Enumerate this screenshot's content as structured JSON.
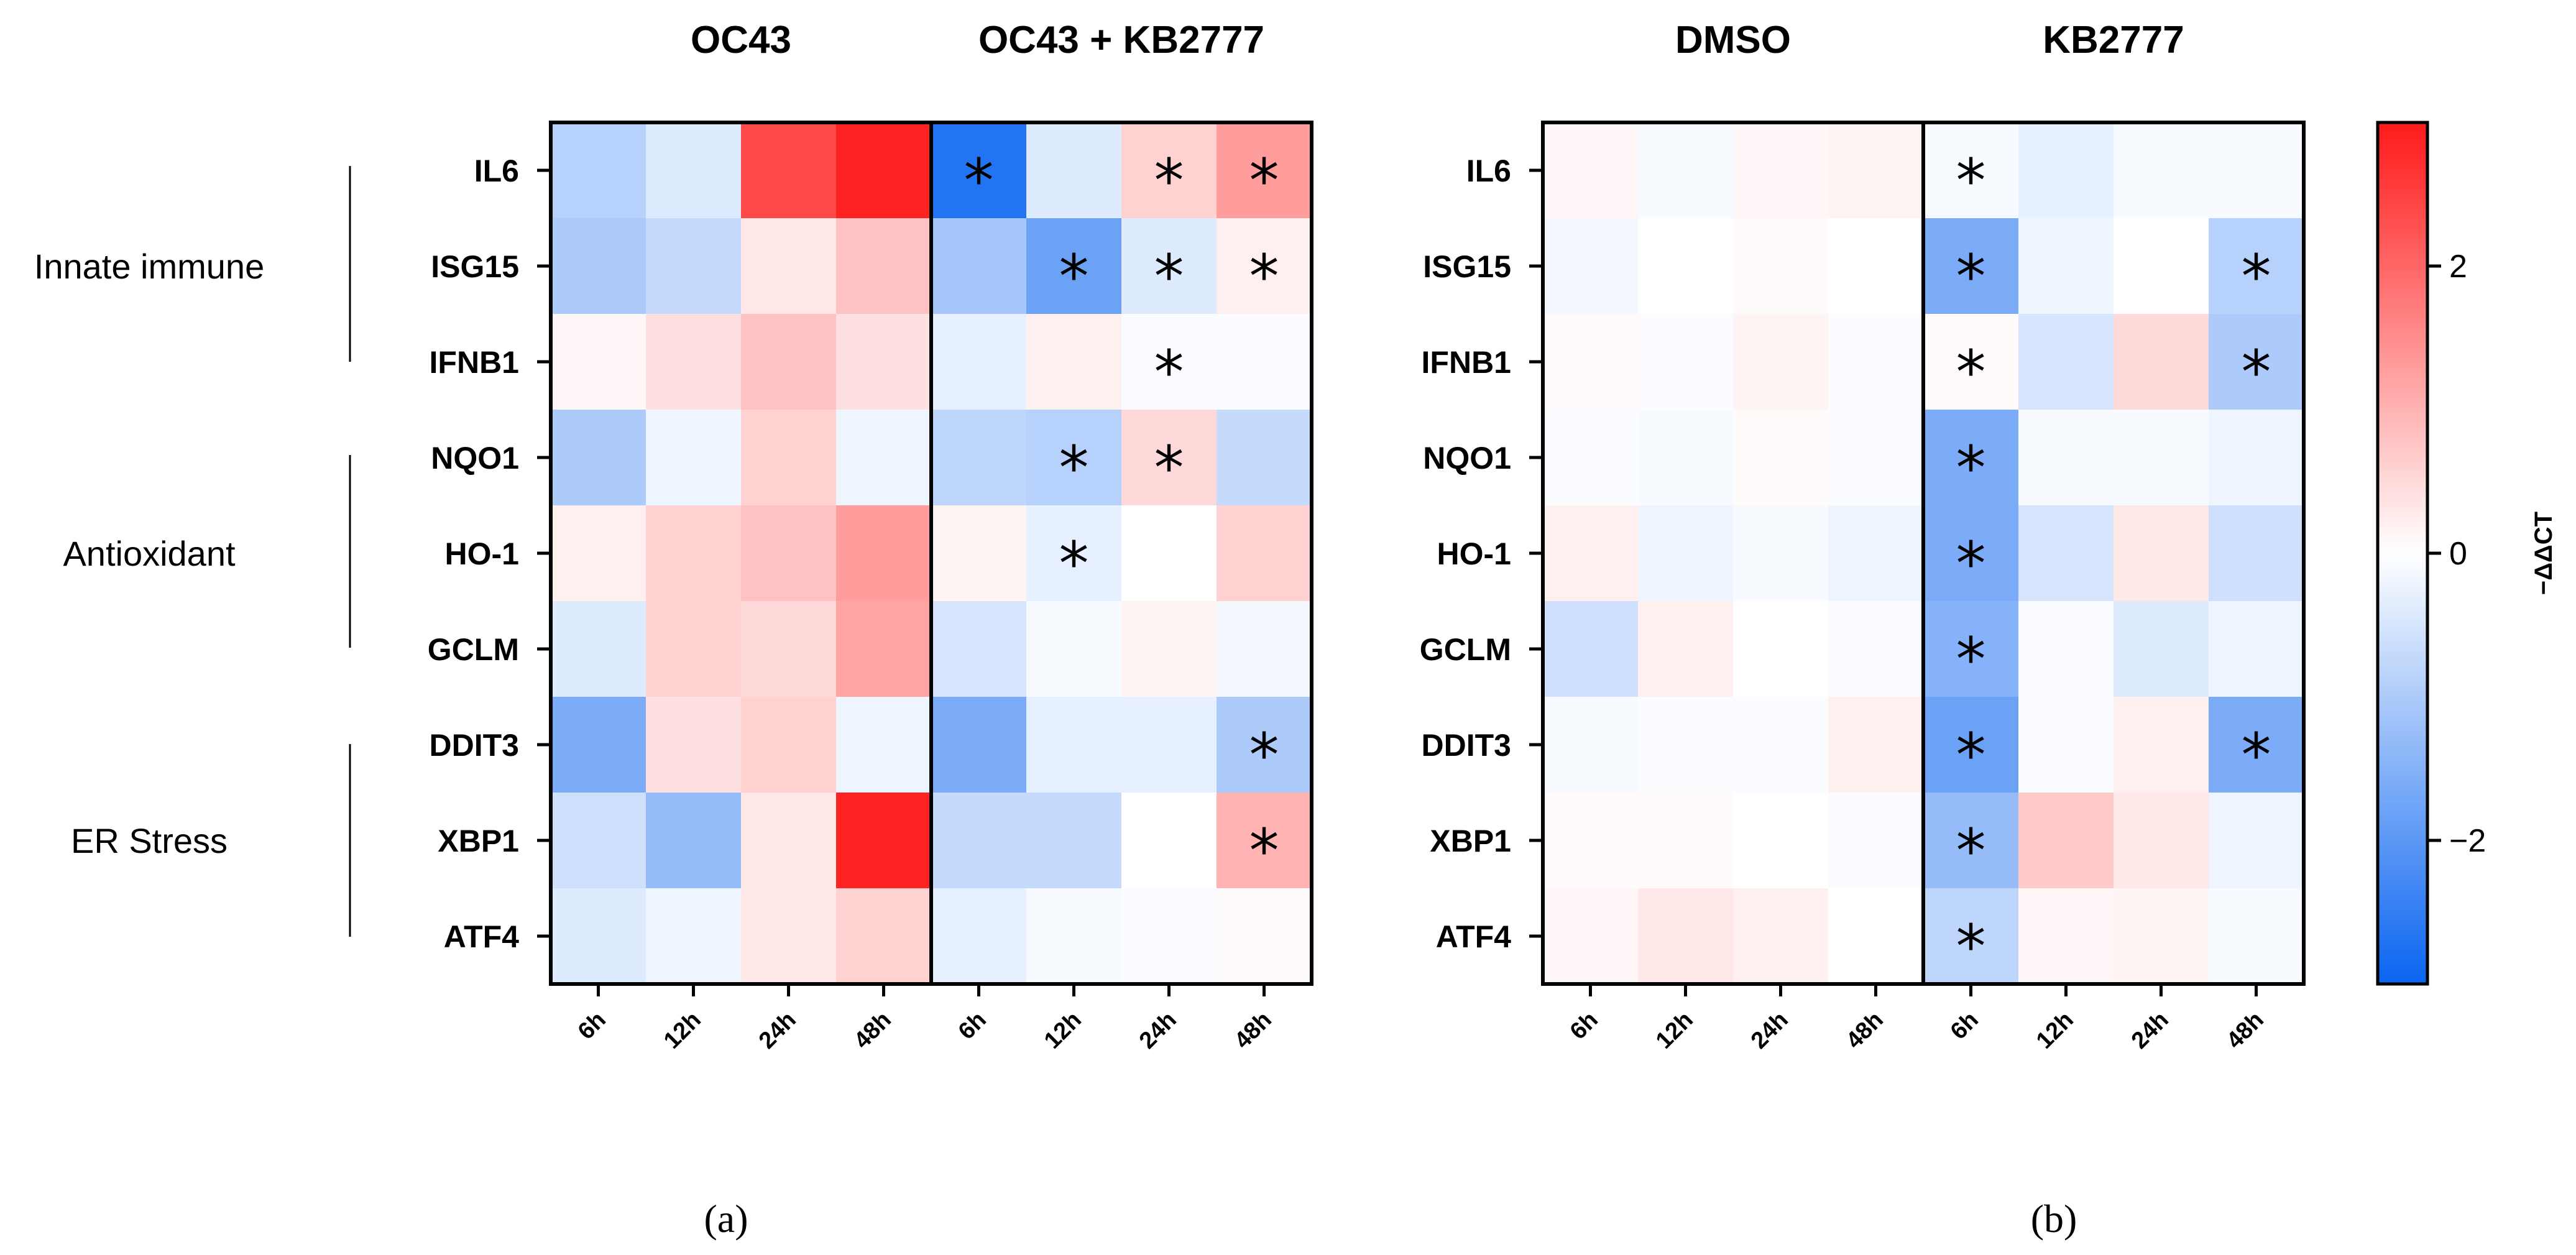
{
  "chart_data": [
    {
      "type": "heatmap",
      "panel": "(a)",
      "groups": [
        "OC43",
        "OC43 + KB2777"
      ],
      "columns": [
        "6h",
        "12h",
        "24h",
        "48h",
        "6h",
        "12h",
        "24h",
        "48h"
      ],
      "rows": [
        "IL6",
        "ISG15",
        "IFNB1",
        "NQO1",
        "HO-1",
        "GCLM",
        "DDIT3",
        "XBP1",
        "ATF4"
      ],
      "values": [
        [
          -0.9,
          -0.4,
          2.4,
          2.9,
          -2.7,
          -0.4,
          0.6,
          1.3
        ],
        [
          -1.0,
          -0.7,
          0.3,
          0.8,
          -1.1,
          -1.8,
          -0.4,
          0.2
        ],
        [
          0.1,
          0.4,
          0.8,
          0.4,
          -0.3,
          0.2,
          -0.05,
          -0.05
        ],
        [
          -1.0,
          -0.2,
          0.6,
          -0.2,
          -0.8,
          -0.9,
          0.5,
          -0.7
        ],
        [
          0.2,
          0.6,
          0.8,
          1.3,
          0.15,
          -0.3,
          0.0,
          0.6
        ],
        [
          -0.4,
          0.6,
          0.5,
          1.2,
          -0.5,
          -0.1,
          0.15,
          -0.15
        ],
        [
          -1.6,
          0.4,
          0.6,
          -0.2,
          -1.6,
          -0.3,
          -0.3,
          -1.0
        ],
        [
          -0.6,
          -1.3,
          0.3,
          2.9,
          -0.7,
          -0.7,
          0.0,
          1.0
        ],
        [
          -0.4,
          -0.2,
          0.3,
          0.6,
          -0.3,
          -0.1,
          -0.05,
          0.05
        ]
      ],
      "significance": [
        [
          false,
          false,
          false,
          false,
          true,
          false,
          true,
          true
        ],
        [
          false,
          false,
          false,
          false,
          false,
          true,
          true,
          true
        ],
        [
          false,
          false,
          false,
          false,
          false,
          false,
          true,
          false
        ],
        [
          false,
          false,
          false,
          false,
          false,
          true,
          true,
          false
        ],
        [
          false,
          false,
          false,
          false,
          false,
          true,
          false,
          false
        ],
        [
          false,
          false,
          false,
          false,
          false,
          false,
          false,
          false
        ],
        [
          false,
          false,
          false,
          false,
          false,
          false,
          false,
          true
        ],
        [
          false,
          false,
          false,
          false,
          false,
          false,
          false,
          true
        ],
        [
          false,
          false,
          false,
          false,
          false,
          false,
          false,
          false
        ]
      ],
      "categories": [
        {
          "label": "Innate immune",
          "rows": [
            "IL6",
            "ISG15",
            "IFNB1"
          ]
        },
        {
          "label": "Antioxidant",
          "rows": [
            "NQO1",
            "HO-1",
            "GCLM"
          ]
        },
        {
          "label": "ER Stress",
          "rows": [
            "DDIT3",
            "XBP1",
            "ATF4"
          ]
        }
      ]
    },
    {
      "type": "heatmap",
      "panel": "(b)",
      "groups": [
        "DMSO",
        "KB2777"
      ],
      "columns": [
        "6h",
        "12h",
        "24h",
        "48h",
        "6h",
        "12h",
        "24h",
        "48h"
      ],
      "rows": [
        "IL6",
        "ISG15",
        "IFNB1",
        "NQO1",
        "HO-1",
        "GCLM",
        "DDIT3",
        "XBP1",
        "ATF4"
      ],
      "values": [
        [
          0.1,
          -0.1,
          0.1,
          0.15,
          -0.1,
          -0.3,
          -0.1,
          -0.1
        ],
        [
          -0.15,
          0.0,
          0.05,
          0.0,
          -1.6,
          -0.2,
          0.0,
          -0.9
        ],
        [
          0.05,
          -0.05,
          0.15,
          -0.05,
          0.05,
          -0.5,
          0.5,
          -1.0
        ],
        [
          -0.05,
          -0.1,
          0.05,
          -0.05,
          -1.6,
          -0.1,
          -0.1,
          -0.2
        ],
        [
          0.2,
          -0.2,
          -0.1,
          -0.2,
          -1.6,
          -0.5,
          0.3,
          -0.6
        ],
        [
          -0.6,
          0.2,
          0.0,
          -0.05,
          -1.5,
          -0.05,
          -0.4,
          -0.2
        ],
        [
          -0.1,
          -0.05,
          -0.05,
          0.2,
          -1.8,
          -0.05,
          0.2,
          -1.6
        ],
        [
          0.05,
          0.05,
          0.0,
          -0.05,
          -1.3,
          0.7,
          0.3,
          -0.2
        ],
        [
          0.1,
          0.3,
          0.2,
          0.0,
          -0.8,
          0.1,
          0.15,
          -0.1
        ]
      ],
      "significance": [
        [
          false,
          false,
          false,
          false,
          true,
          false,
          false,
          false
        ],
        [
          false,
          false,
          false,
          false,
          true,
          false,
          false,
          true
        ],
        [
          false,
          false,
          false,
          false,
          true,
          false,
          false,
          true
        ],
        [
          false,
          false,
          false,
          false,
          true,
          false,
          false,
          false
        ],
        [
          false,
          false,
          false,
          false,
          true,
          false,
          false,
          false
        ],
        [
          false,
          false,
          false,
          false,
          true,
          false,
          false,
          false
        ],
        [
          false,
          false,
          false,
          false,
          true,
          false,
          false,
          true
        ],
        [
          false,
          false,
          false,
          false,
          true,
          false,
          false,
          false
        ],
        [
          false,
          false,
          false,
          false,
          true,
          false,
          false,
          false
        ]
      ]
    }
  ],
  "colorbar": {
    "title": "−ΔΔCT",
    "range": [
      -3,
      3
    ],
    "ticks": [
      2,
      0,
      -2
    ],
    "tick_labels": [
      "2",
      "0",
      "−2"
    ],
    "colors": {
      "low": "#0a64f0",
      "mid": "#ffffff",
      "high": "#ff1a1a"
    }
  },
  "significance_marker": "*"
}
